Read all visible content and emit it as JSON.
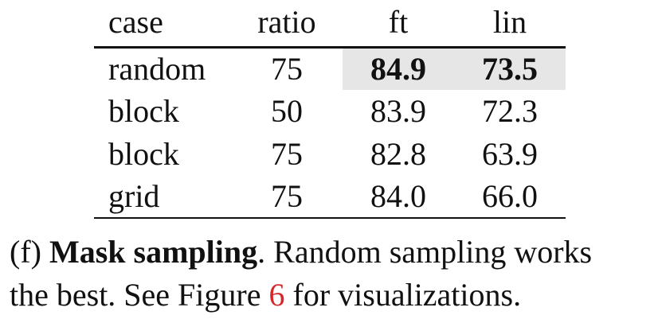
{
  "table": {
    "headers": [
      "case",
      "ratio",
      "ft",
      "lin"
    ],
    "rows": [
      {
        "case": "random",
        "ratio": "75",
        "ft": "84.9",
        "lin": "73.5"
      },
      {
        "case": "block",
        "ratio": "50",
        "ft": "83.9",
        "lin": "72.3"
      },
      {
        "case": "block",
        "ratio": "75",
        "ft": "82.8",
        "lin": "63.9"
      },
      {
        "case": "grid",
        "ratio": "75",
        "ft": "84.0",
        "lin": "66.0"
      }
    ],
    "highlight_color": "#e6e6e6"
  },
  "caption": {
    "label": "(f)",
    "title": "Mask sampling",
    "text_1": ". Random sampling works",
    "text_2": "the best. See Figure",
    "figure_ref": "6",
    "text_3": "for visualizations.",
    "ref_color": "#d62728"
  }
}
